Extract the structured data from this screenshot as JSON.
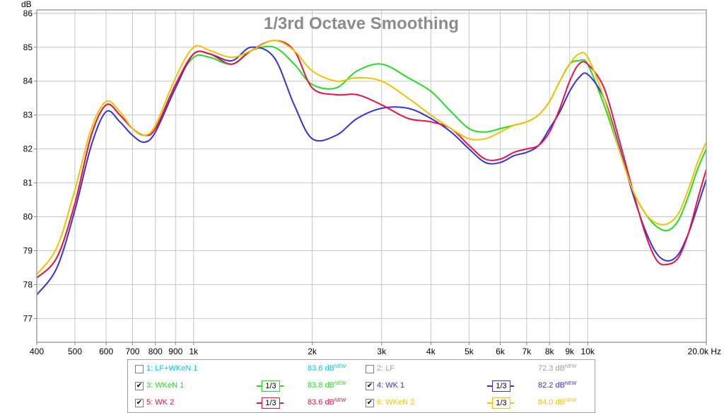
{
  "chart_data": {
    "type": "line",
    "title": "1/3rd Octave Smoothing",
    "ylabel": "dB",
    "x_unit": "Hz",
    "xlim": [
      400,
      20000
    ],
    "ylim": [
      76.3,
      86.1
    ],
    "xscale": "log",
    "grid": true,
    "yticks": [
      "77",
      "78",
      "79",
      "80",
      "81",
      "82",
      "83",
      "84",
      "85",
      "86"
    ],
    "xticks": [
      {
        "v": 400,
        "label": "400"
      },
      {
        "v": 500,
        "label": "500"
      },
      {
        "v": 600,
        "label": "600"
      },
      {
        "v": 700,
        "label": "700"
      },
      {
        "v": 800,
        "label": "800"
      },
      {
        "v": 900,
        "label": "900"
      },
      {
        "v": 1000,
        "label": "1k"
      },
      {
        "v": 2000,
        "label": "2k"
      },
      {
        "v": 3000,
        "label": "3k"
      },
      {
        "v": 4000,
        "label": "4k"
      },
      {
        "v": 5000,
        "label": "5k"
      },
      {
        "v": 6000,
        "label": "6k"
      },
      {
        "v": 7000,
        "label": "7k"
      },
      {
        "v": 8000,
        "label": "8k"
      },
      {
        "v": 9000,
        "label": "9k"
      },
      {
        "v": 10000,
        "label": "10k"
      },
      {
        "v": 20000,
        "label": "20.0k Hz"
      }
    ],
    "series": [
      {
        "name": "3: WKeN 1",
        "color": "#22dd22",
        "x": [
          400,
          450,
          500,
          550,
          600,
          650,
          700,
          750,
          800,
          900,
          1000,
          1100,
          1250,
          1400,
          1600,
          1800,
          2000,
          2300,
          2600,
          3000,
          3500,
          4000,
          4500,
          5000,
          5500,
          6000,
          6500,
          7000,
          7500,
          8000,
          8500,
          9000,
          9500,
          10000,
          11000,
          12000,
          13000,
          14000,
          15000,
          16000,
          17000,
          18000,
          19000,
          20000
        ],
        "y": [
          78.2,
          78.8,
          80.4,
          82.4,
          83.3,
          83.0,
          82.6,
          82.4,
          82.6,
          83.9,
          84.7,
          84.7,
          84.5,
          84.9,
          85.0,
          84.5,
          83.9,
          83.8,
          84.3,
          84.5,
          84.1,
          83.7,
          83.1,
          82.6,
          82.5,
          82.6,
          82.7,
          82.8,
          83.0,
          83.4,
          84.0,
          84.5,
          84.6,
          84.5,
          83.3,
          82.0,
          80.8,
          80.1,
          79.7,
          79.6,
          79.9,
          80.6,
          81.4,
          82.0
        ]
      },
      {
        "name": "4: WK 1",
        "color": "#3333dd",
        "x": [
          400,
          450,
          500,
          550,
          600,
          650,
          700,
          750,
          800,
          900,
          1000,
          1100,
          1250,
          1400,
          1600,
          1800,
          2000,
          2300,
          2600,
          3000,
          3500,
          4000,
          4500,
          5000,
          5500,
          6000,
          6500,
          7000,
          7500,
          8000,
          8500,
          9000,
          9500,
          10000,
          11000,
          12000,
          13000,
          14000,
          15000,
          16000,
          17000,
          18000,
          19000,
          20000
        ],
        "y": [
          77.7,
          78.5,
          80.2,
          82.1,
          83.1,
          82.8,
          82.4,
          82.2,
          82.5,
          83.8,
          84.8,
          84.8,
          84.6,
          85.0,
          84.7,
          83.3,
          82.3,
          82.4,
          82.9,
          83.2,
          83.2,
          82.9,
          82.5,
          82.0,
          81.6,
          81.6,
          81.8,
          81.9,
          82.1,
          82.6,
          83.1,
          83.7,
          84.1,
          84.2,
          83.5,
          82.1,
          80.7,
          79.6,
          78.9,
          78.7,
          78.9,
          79.5,
          80.3,
          81.1
        ]
      },
      {
        "name": "5: WK 2",
        "color": "#ee1144",
        "x": [
          400,
          450,
          500,
          550,
          600,
          650,
          700,
          750,
          800,
          900,
          1000,
          1100,
          1250,
          1400,
          1600,
          1800,
          2000,
          2300,
          2600,
          3000,
          3500,
          4000,
          4500,
          5000,
          5500,
          6000,
          6500,
          7000,
          7500,
          8000,
          8500,
          9000,
          9500,
          10000,
          11000,
          12000,
          13000,
          14000,
          15000,
          16000,
          17000,
          18000,
          19000,
          20000
        ],
        "y": [
          78.2,
          78.8,
          80.4,
          82.4,
          83.3,
          83.0,
          82.6,
          82.4,
          82.6,
          83.9,
          84.8,
          84.8,
          84.5,
          84.9,
          85.2,
          84.9,
          83.8,
          83.6,
          83.6,
          83.3,
          82.9,
          82.8,
          82.6,
          82.1,
          81.7,
          81.7,
          81.9,
          82.0,
          82.1,
          82.5,
          83.2,
          84.0,
          84.5,
          84.5,
          83.8,
          82.3,
          80.8,
          79.5,
          78.7,
          78.6,
          78.8,
          79.5,
          80.5,
          81.4
        ]
      },
      {
        "name": "6: WKeN 2",
        "color": "#f2c200",
        "x": [
          400,
          450,
          500,
          550,
          600,
          650,
          700,
          750,
          800,
          900,
          1000,
          1100,
          1250,
          1400,
          1600,
          1800,
          2000,
          2300,
          2600,
          3000,
          3500,
          4000,
          4500,
          5000,
          5500,
          6000,
          6500,
          7000,
          7500,
          8000,
          8500,
          9000,
          9500,
          10000,
          11000,
          12000,
          13000,
          14000,
          15000,
          16000,
          17000,
          18000,
          19000,
          20000
        ],
        "y": [
          78.3,
          79.1,
          80.8,
          82.6,
          83.4,
          83.1,
          82.6,
          82.4,
          82.7,
          84.1,
          85.0,
          84.9,
          84.7,
          84.9,
          85.2,
          84.9,
          84.3,
          84.0,
          84.1,
          84.0,
          83.5,
          83.0,
          82.6,
          82.3,
          82.3,
          82.5,
          82.7,
          82.8,
          83.0,
          83.4,
          84.0,
          84.5,
          84.8,
          84.7,
          83.5,
          82.0,
          80.8,
          80.1,
          79.8,
          79.8,
          80.1,
          80.8,
          81.6,
          82.2
        ]
      }
    ]
  },
  "legend": {
    "rows": [
      [
        {
          "name": "1: LF+WKeN 1",
          "checked": false,
          "color": "#00c8e8",
          "smoothing": "",
          "value": "83.6 dB",
          "badge": "NEW"
        },
        {
          "name": "2: LF",
          "checked": false,
          "color": "#a0a0a0",
          "smoothing": "",
          "value": "72.3 dB",
          "badge": "NEW"
        }
      ],
      [
        {
          "name": "3: WKeN 1",
          "checked": true,
          "color": "#22dd22",
          "smoothing": "1/3",
          "value": "83.8 dB",
          "badge": "NEW"
        },
        {
          "name": "4: WK 1",
          "checked": true,
          "color": "#3333dd",
          "smoothing": "1/3",
          "value": "82.2 dB",
          "badge": "NEW"
        }
      ],
      [
        {
          "name": "5: WK 2",
          "checked": true,
          "color": "#ee1144",
          "smoothing": "1/3",
          "value": "83.6 dB",
          "badge": "NEW"
        },
        {
          "name": "6: WKeN 2",
          "checked": true,
          "color": "#f2c200",
          "smoothing": "1/3",
          "value": "84.0 dB",
          "badge": "NEW"
        }
      ]
    ]
  }
}
